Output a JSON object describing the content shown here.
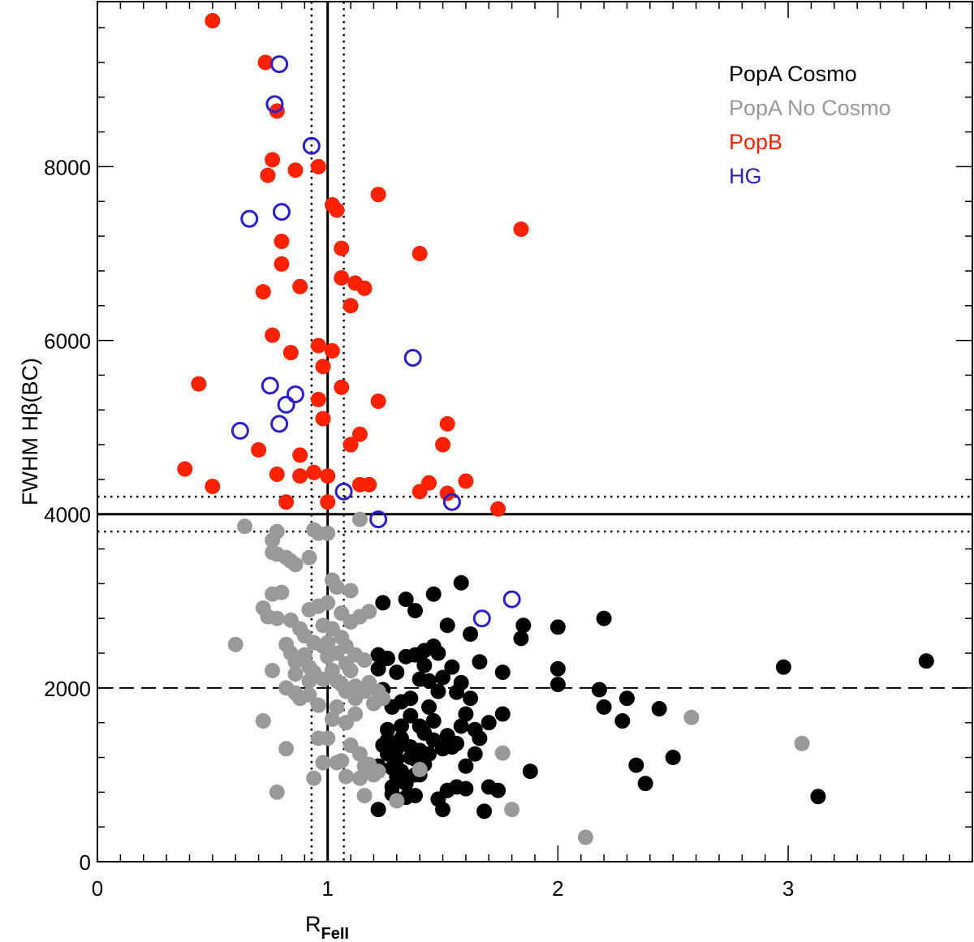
{
  "chart_data": {
    "type": "scatter",
    "xlabel": "R",
    "xlabel_sub": "FeII",
    "ylabel": "FWHM  Hβ(BC)",
    "xlim": [
      0,
      3.8
    ],
    "ylim": [
      0,
      9900
    ],
    "x_ticks": [
      0,
      1,
      2,
      3
    ],
    "x_tick_labels": [
      "0",
      "1",
      "2",
      "3"
    ],
    "y_ticks": [
      0,
      2000,
      4000,
      6000,
      8000
    ],
    "y_tick_labels": [
      "0",
      "2000",
      "4000",
      "6000",
      "8000"
    ],
    "legend_position": "top-right",
    "reference_lines": {
      "vertical_solid": 1.0,
      "vertical_dotted": [
        0.93,
        1.07
      ],
      "horizontal_solid": 4000,
      "horizontal_dotted": [
        3800,
        4200
      ],
      "horizontal_dashed": 2000
    },
    "series": [
      {
        "name": "PopA Cosmo",
        "color": "#000000",
        "points": [
          [
            1.22,
            600
          ],
          [
            1.28,
            780
          ],
          [
            1.34,
            740
          ],
          [
            1.38,
            1000
          ],
          [
            1.42,
            1120
          ],
          [
            1.44,
            1240
          ],
          [
            1.46,
            1400
          ],
          [
            1.5,
            600
          ],
          [
            1.52,
            820
          ],
          [
            1.56,
            860
          ],
          [
            1.6,
            840
          ],
          [
            1.68,
            580
          ],
          [
            1.74,
            820
          ],
          [
            1.7,
            860
          ],
          [
            1.48,
            720
          ],
          [
            1.32,
            1420
          ],
          [
            1.26,
            1520
          ],
          [
            1.3,
            1300
          ],
          [
            1.36,
            1200
          ],
          [
            1.4,
            1560
          ],
          [
            1.24,
            1340
          ],
          [
            1.22,
            1100
          ],
          [
            1.28,
            1080
          ],
          [
            1.34,
            900
          ],
          [
            1.3,
            980
          ],
          [
            1.38,
            1180
          ],
          [
            1.42,
            1480
          ],
          [
            1.46,
            1620
          ],
          [
            1.52,
            1450
          ],
          [
            1.56,
            1360
          ],
          [
            1.6,
            1100
          ],
          [
            1.64,
            1240
          ],
          [
            1.66,
            1420
          ],
          [
            1.7,
            1600
          ],
          [
            1.76,
            1700
          ],
          [
            1.6,
            1700
          ],
          [
            1.56,
            1950
          ],
          [
            1.48,
            1960
          ],
          [
            1.44,
            2080
          ],
          [
            1.4,
            2100
          ],
          [
            1.36,
            1880
          ],
          [
            1.32,
            1840
          ],
          [
            1.28,
            1780
          ],
          [
            1.24,
            1980
          ],
          [
            1.22,
            2220
          ],
          [
            1.26,
            2340
          ],
          [
            1.3,
            2180
          ],
          [
            1.34,
            2360
          ],
          [
            1.38,
            2380
          ],
          [
            1.42,
            2260
          ],
          [
            1.46,
            2480
          ],
          [
            1.5,
            2120
          ],
          [
            1.54,
            2240
          ],
          [
            1.58,
            2060
          ],
          [
            1.62,
            1880
          ],
          [
            1.52,
            2720
          ],
          [
            1.46,
            3080
          ],
          [
            1.38,
            2890
          ],
          [
            1.34,
            3020
          ],
          [
            1.24,
            2980
          ],
          [
            1.58,
            3210
          ],
          [
            1.62,
            2620
          ],
          [
            1.66,
            2300
          ],
          [
            1.76,
            2180
          ],
          [
            1.84,
            2570
          ],
          [
            1.85,
            2720
          ],
          [
            2.0,
            2700
          ],
          [
            2.0,
            2220
          ],
          [
            2.0,
            2040
          ],
          [
            1.88,
            1040
          ],
          [
            2.18,
            1980
          ],
          [
            2.2,
            1780
          ],
          [
            2.2,
            2800
          ],
          [
            2.3,
            1880
          ],
          [
            2.28,
            1620
          ],
          [
            2.34,
            1110
          ],
          [
            2.38,
            900
          ],
          [
            2.44,
            1760
          ],
          [
            2.5,
            1200
          ],
          [
            2.98,
            2240
          ],
          [
            3.13,
            750
          ],
          [
            3.6,
            2310
          ],
          [
            1.32,
            1560
          ],
          [
            1.26,
            1240
          ],
          [
            1.36,
            1680
          ],
          [
            1.44,
            1780
          ],
          [
            1.5,
            1300
          ],
          [
            1.4,
            1000
          ],
          [
            1.3,
            1180
          ],
          [
            1.22,
            2380
          ],
          [
            1.28,
            860
          ],
          [
            1.38,
            760
          ],
          [
            1.58,
            1560
          ],
          [
            1.64,
            1520
          ],
          [
            1.48,
            2400
          ],
          [
            1.42,
            2430
          ],
          [
            1.32,
            1040
          ],
          [
            1.26,
            1400
          ],
          [
            1.36,
            1320
          ],
          [
            1.4,
            1280
          ],
          [
            1.54,
            1320
          ]
        ]
      },
      {
        "name": "PopA No Cosmo",
        "color": "#999999",
        "points": [
          [
            0.78,
            3800
          ],
          [
            0.76,
            3700
          ],
          [
            0.76,
            3560
          ],
          [
            0.78,
            3540
          ],
          [
            0.82,
            3500
          ],
          [
            0.86,
            3420
          ],
          [
            0.92,
            3500
          ],
          [
            0.96,
            3780
          ],
          [
            1.0,
            3780
          ],
          [
            0.94,
            3820
          ],
          [
            1.14,
            3940
          ],
          [
            0.64,
            3860
          ],
          [
            0.8,
            3100
          ],
          [
            0.76,
            3080
          ],
          [
            0.72,
            2920
          ],
          [
            0.74,
            2820
          ],
          [
            0.78,
            2800
          ],
          [
            0.84,
            2780
          ],
          [
            0.88,
            2680
          ],
          [
            0.92,
            2900
          ],
          [
            0.96,
            2940
          ],
          [
            1.0,
            2980
          ],
          [
            1.02,
            3240
          ],
          [
            1.04,
            3160
          ],
          [
            1.1,
            3120
          ],
          [
            0.82,
            2500
          ],
          [
            0.84,
            2400
          ],
          [
            0.9,
            2380
          ],
          [
            0.94,
            2520
          ],
          [
            0.98,
            2480
          ],
          [
            1.0,
            2520
          ],
          [
            1.04,
            2400
          ],
          [
            1.08,
            2480
          ],
          [
            1.12,
            2380
          ],
          [
            1.16,
            2320
          ],
          [
            0.6,
            2500
          ],
          [
            0.76,
            2200
          ],
          [
            0.82,
            2000
          ],
          [
            0.86,
            1940
          ],
          [
            0.92,
            2080
          ],
          [
            0.98,
            2100
          ],
          [
            1.04,
            2080
          ],
          [
            1.08,
            1960
          ],
          [
            1.12,
            1880
          ],
          [
            1.16,
            1960
          ],
          [
            1.2,
            1820
          ],
          [
            1.12,
            1700
          ],
          [
            1.08,
            1600
          ],
          [
            1.02,
            1640
          ],
          [
            0.96,
            1800
          ],
          [
            0.92,
            1920
          ],
          [
            0.88,
            1880
          ],
          [
            0.96,
            1420
          ],
          [
            1.0,
            1420
          ],
          [
            1.1,
            1340
          ],
          [
            1.14,
            1240
          ],
          [
            1.18,
            1120
          ],
          [
            1.04,
            1140
          ],
          [
            0.98,
            1140
          ],
          [
            0.94,
            960
          ],
          [
            1.08,
            980
          ],
          [
            1.14,
            960
          ],
          [
            1.2,
            1000
          ],
          [
            0.82,
            1300
          ],
          [
            0.72,
            1620
          ],
          [
            0.78,
            800
          ],
          [
            1.16,
            760
          ],
          [
            1.3,
            700
          ],
          [
            1.4,
            1060
          ],
          [
            1.76,
            1250
          ],
          [
            1.8,
            600
          ],
          [
            2.12,
            280
          ],
          [
            2.58,
            1660
          ],
          [
            3.06,
            1360
          ],
          [
            1.06,
            2580
          ],
          [
            1.1,
            2200
          ],
          [
            0.86,
            2300
          ],
          [
            1.12,
            2020
          ],
          [
            1.22,
            1960
          ],
          [
            1.1,
            2760
          ],
          [
            1.14,
            2820
          ],
          [
            1.18,
            2880
          ],
          [
            1.06,
            2040
          ],
          [
            0.9,
            2600
          ],
          [
            0.94,
            2180
          ],
          [
            0.86,
            2160
          ],
          [
            1.02,
            2680
          ],
          [
            1.06,
            2860
          ],
          [
            1.16,
            1100
          ],
          [
            1.24,
            1880
          ],
          [
            1.0,
            2360
          ],
          [
            0.98,
            2720
          ],
          [
            1.04,
            1780
          ],
          [
            1.08,
            2280
          ],
          [
            0.84,
            3460
          ],
          [
            1.02,
            2200
          ],
          [
            1.18,
            2060
          ],
          [
            0.92,
            2240
          ],
          [
            1.06,
            1160
          ],
          [
            1.22,
            1040
          ]
        ]
      },
      {
        "name": "PopB",
        "color": "#ff2200",
        "points": [
          [
            0.5,
            9680
          ],
          [
            0.73,
            9200
          ],
          [
            0.78,
            8640
          ],
          [
            0.76,
            8080
          ],
          [
            0.74,
            7900
          ],
          [
            0.86,
            7960
          ],
          [
            0.96,
            8000
          ],
          [
            1.02,
            7560
          ],
          [
            1.04,
            7500
          ],
          [
            1.22,
            7680
          ],
          [
            1.84,
            7280
          ],
          [
            0.8,
            7140
          ],
          [
            1.06,
            7060
          ],
          [
            1.4,
            7000
          ],
          [
            0.8,
            6880
          ],
          [
            1.06,
            6720
          ],
          [
            1.12,
            6660
          ],
          [
            1.16,
            6600
          ],
          [
            0.88,
            6620
          ],
          [
            0.72,
            6560
          ],
          [
            1.1,
            6400
          ],
          [
            0.76,
            6060
          ],
          [
            0.96,
            5940
          ],
          [
            1.02,
            5880
          ],
          [
            0.84,
            5860
          ],
          [
            0.98,
            5700
          ],
          [
            0.44,
            5500
          ],
          [
            1.06,
            5460
          ],
          [
            0.96,
            5320
          ],
          [
            1.22,
            5300
          ],
          [
            0.98,
            5100
          ],
          [
            1.52,
            5040
          ],
          [
            1.14,
            4920
          ],
          [
            1.1,
            4800
          ],
          [
            1.5,
            4800
          ],
          [
            0.7,
            4740
          ],
          [
            0.88,
            4680
          ],
          [
            0.38,
            4520
          ],
          [
            0.78,
            4460
          ],
          [
            0.88,
            4440
          ],
          [
            0.94,
            4480
          ],
          [
            1.0,
            4440
          ],
          [
            0.5,
            4320
          ],
          [
            1.14,
            4340
          ],
          [
            1.18,
            4340
          ],
          [
            1.4,
            4260
          ],
          [
            1.44,
            4360
          ],
          [
            1.52,
            4240
          ],
          [
            1.6,
            4380
          ],
          [
            0.82,
            4140
          ],
          [
            1.0,
            4140
          ],
          [
            1.74,
            4060
          ]
        ]
      },
      {
        "name": "HG",
        "color": "#2a1fc8",
        "points": [
          [
            0.79,
            9180
          ],
          [
            0.77,
            8720
          ],
          [
            0.93,
            8240
          ],
          [
            0.66,
            7400
          ],
          [
            0.8,
            7480
          ],
          [
            1.37,
            5800
          ],
          [
            0.75,
            5480
          ],
          [
            0.86,
            5380
          ],
          [
            0.82,
            5260
          ],
          [
            0.62,
            4960
          ],
          [
            0.79,
            5040
          ],
          [
            1.07,
            4260
          ],
          [
            1.54,
            4140
          ],
          [
            1.22,
            3940
          ],
          [
            1.67,
            2800
          ],
          [
            1.8,
            3020
          ]
        ]
      }
    ]
  }
}
